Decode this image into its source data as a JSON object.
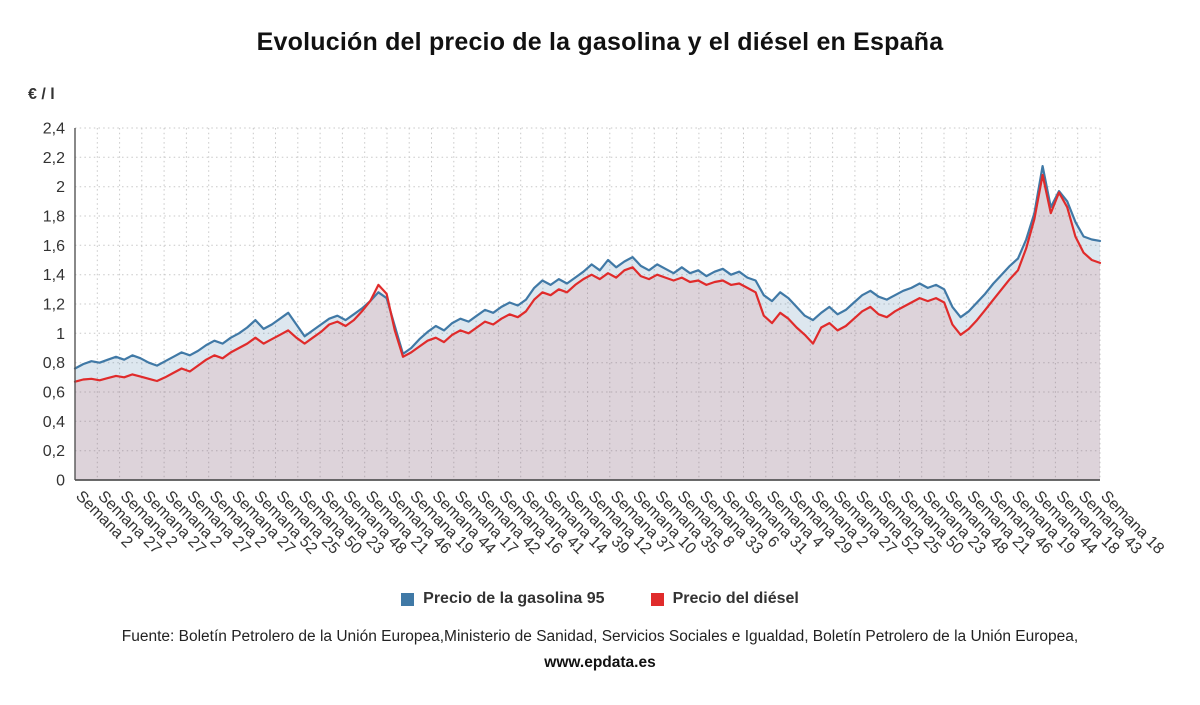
{
  "title": "Evolución del precio de la gasolina y el diésel en España",
  "y_axis_unit": "€ / l",
  "source": {
    "prefix": "Fuente: Boletín Petrolero de la Unión Europea,Ministerio de Sanidad, Servicios Sociales e Igualdad, Boletín Petrolero de la Unión Europea, ",
    "link": "www.epdata.es"
  },
  "chart_data": {
    "type": "line",
    "title": "Evolución del precio de la gasolina y el diésel en España",
    "ylabel": "€ / l",
    "xlabel": "",
    "grid": "dotted",
    "legend_position": "bottom",
    "y_max": 2.4,
    "ylim": [
      0,
      2.4
    ],
    "y_ticks": [
      {
        "value": 0.0,
        "label": "0"
      },
      {
        "value": 0.2,
        "label": "0,2"
      },
      {
        "value": 0.4,
        "label": "0,4"
      },
      {
        "value": 0.6,
        "label": "0,6"
      },
      {
        "value": 0.8,
        "label": "0,8"
      },
      {
        "value": 1.0,
        "label": "1"
      },
      {
        "value": 1.2,
        "label": "1,2"
      },
      {
        "value": 1.4,
        "label": "1,4"
      },
      {
        "value": 1.6,
        "label": "1,6"
      },
      {
        "value": 1.8,
        "label": "1,8"
      },
      {
        "value": 2.0,
        "label": "2"
      },
      {
        "value": 2.2,
        "label": "2,2"
      },
      {
        "value": 2.4,
        "label": "2,4"
      }
    ],
    "x_tick_labels": [
      "Semana 2",
      "Semana 27",
      "Semana 2",
      "Semana 27",
      "Semana 2",
      "Semana 27",
      "Semana 2",
      "Semana 27",
      "Semana 52",
      "Semana 25",
      "Semana 50",
      "Semana 23",
      "Semana 48",
      "Semana 21",
      "Semana 46",
      "Semana 19",
      "Semana 44",
      "Semana 17",
      "Semana 42",
      "Semana 16",
      "Semana 41",
      "Semana 14",
      "Semana 39",
      "Semana 12",
      "Semana 37",
      "Semana 10",
      "Semana 35",
      "Semana 8",
      "Semana 33",
      "Semana 6",
      "Semana 31",
      "Semana 4",
      "Semana 29",
      "Semana 2",
      "Semana 27",
      "Semana 52",
      "Semana 25",
      "Semana 50",
      "Semana 23",
      "Semana 48",
      "Semana 21",
      "Semana 46",
      "Semana 19",
      "Semana 44",
      "Semana 18",
      "Semana 43",
      "Semana 18"
    ],
    "series": [
      {
        "name": "Precio de la gasolina 95",
        "color": "#4079a6",
        "fill": "rgba(64,121,166,0.18)",
        "values": [
          0.76,
          0.79,
          0.81,
          0.8,
          0.82,
          0.84,
          0.82,
          0.85,
          0.83,
          0.8,
          0.78,
          0.81,
          0.84,
          0.87,
          0.85,
          0.88,
          0.92,
          0.95,
          0.93,
          0.97,
          1.0,
          1.04,
          1.09,
          1.03,
          1.06,
          1.1,
          1.14,
          1.06,
          0.98,
          1.02,
          1.06,
          1.1,
          1.12,
          1.09,
          1.13,
          1.17,
          1.22,
          1.28,
          1.24,
          1.05,
          0.86,
          0.9,
          0.96,
          1.01,
          1.05,
          1.02,
          1.07,
          1.1,
          1.08,
          1.12,
          1.16,
          1.14,
          1.18,
          1.21,
          1.19,
          1.23,
          1.31,
          1.36,
          1.33,
          1.37,
          1.34,
          1.38,
          1.42,
          1.47,
          1.43,
          1.5,
          1.45,
          1.49,
          1.52,
          1.46,
          1.43,
          1.47,
          1.44,
          1.41,
          1.45,
          1.41,
          1.43,
          1.39,
          1.42,
          1.44,
          1.4,
          1.42,
          1.38,
          1.36,
          1.26,
          1.22,
          1.28,
          1.24,
          1.18,
          1.12,
          1.09,
          1.14,
          1.18,
          1.13,
          1.16,
          1.21,
          1.26,
          1.29,
          1.25,
          1.23,
          1.26,
          1.29,
          1.31,
          1.34,
          1.31,
          1.33,
          1.3,
          1.18,
          1.11,
          1.15,
          1.21,
          1.27,
          1.34,
          1.4,
          1.46,
          1.51,
          1.64,
          1.82,
          2.14,
          1.86,
          1.97,
          1.9,
          1.76,
          1.66,
          1.64,
          1.63
        ]
      },
      {
        "name": "Precio del diésel",
        "color": "#e02b2b",
        "fill": "rgba(224,43,43,0.10)",
        "values": [
          0.67,
          0.685,
          0.69,
          0.68,
          0.695,
          0.71,
          0.7,
          0.72,
          0.705,
          0.69,
          0.675,
          0.7,
          0.73,
          0.76,
          0.74,
          0.78,
          0.82,
          0.85,
          0.83,
          0.87,
          0.9,
          0.93,
          0.97,
          0.93,
          0.96,
          0.99,
          1.02,
          0.97,
          0.93,
          0.97,
          1.01,
          1.06,
          1.08,
          1.05,
          1.09,
          1.15,
          1.22,
          1.33,
          1.27,
          1.02,
          0.84,
          0.87,
          0.91,
          0.95,
          0.97,
          0.94,
          0.99,
          1.02,
          1.0,
          1.04,
          1.08,
          1.06,
          1.1,
          1.13,
          1.11,
          1.15,
          1.23,
          1.28,
          1.26,
          1.3,
          1.28,
          1.33,
          1.37,
          1.4,
          1.37,
          1.41,
          1.38,
          1.43,
          1.45,
          1.39,
          1.37,
          1.4,
          1.38,
          1.36,
          1.38,
          1.35,
          1.36,
          1.33,
          1.35,
          1.36,
          1.33,
          1.34,
          1.31,
          1.28,
          1.12,
          1.07,
          1.14,
          1.1,
          1.04,
          0.99,
          0.93,
          1.04,
          1.07,
          1.02,
          1.05,
          1.1,
          1.15,
          1.18,
          1.13,
          1.11,
          1.15,
          1.18,
          1.21,
          1.24,
          1.22,
          1.24,
          1.21,
          1.06,
          0.99,
          1.03,
          1.09,
          1.16,
          1.23,
          1.3,
          1.37,
          1.43,
          1.58,
          1.78,
          2.08,
          1.82,
          1.96,
          1.86,
          1.66,
          1.55,
          1.5,
          1.48
        ]
      }
    ]
  }
}
